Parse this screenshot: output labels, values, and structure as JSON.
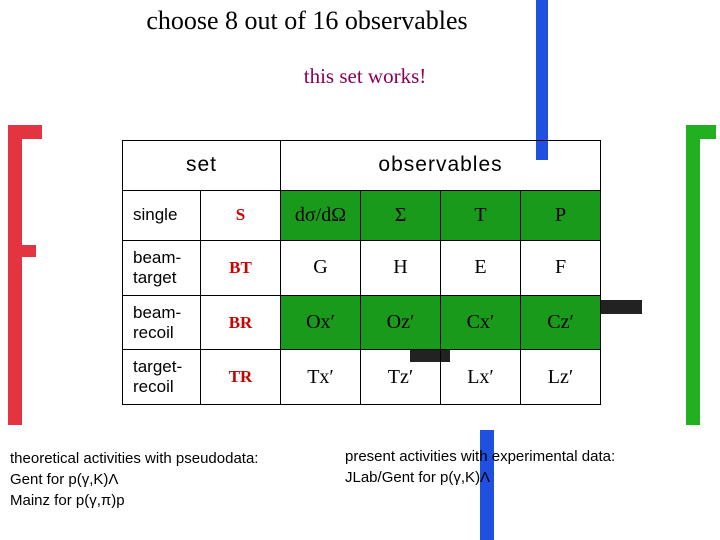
{
  "header": {
    "title": "choose 8 out of 16 observables",
    "subtitle": "this set works!"
  },
  "table": {
    "columns": [
      "set",
      "observables"
    ],
    "rows": [
      [
        "single",
        "S",
        "dσ/dΩ",
        "Σ",
        "T",
        "P"
      ],
      [
        "beam-target",
        "BT",
        "G",
        "H",
        "E",
        "F"
      ],
      [
        "beam-recoil",
        "BR",
        "Ox′",
        "Oz′",
        "Cx′",
        "Cz′"
      ],
      [
        "target-recoil",
        "TR",
        "Tx′",
        "Tz′",
        "Lx′",
        "Lz′"
      ]
    ]
  },
  "notes": {
    "left": [
      "theoretical activities with pseudodata:",
      "Gent  for  p(γ,K)Λ",
      "Mainz  for  p(γ,π)p"
    ],
    "right": [
      "present activities with experimental data:",
      "JLab/Gent  for  p(γ,K)Λ"
    ]
  }
}
